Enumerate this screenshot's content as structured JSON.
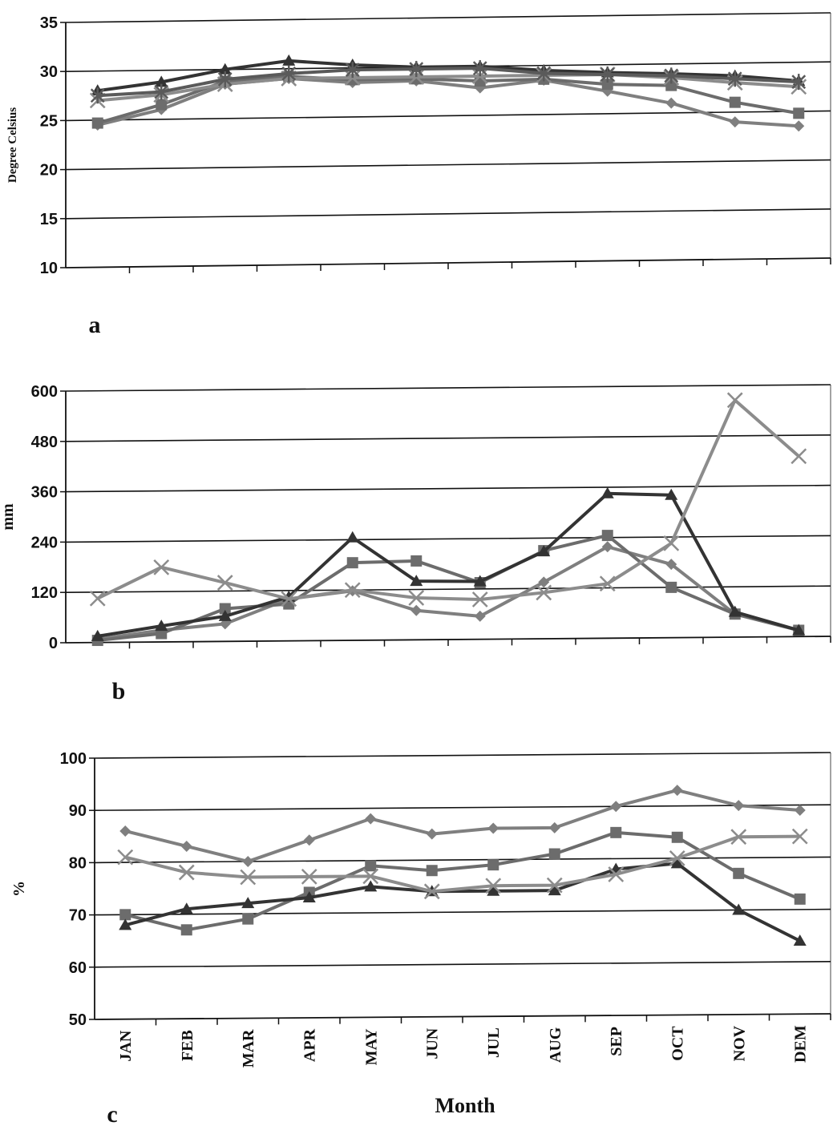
{
  "chart_data": [
    {
      "type": "line",
      "panel_label": "a",
      "ylabel": "Degree Celsius",
      "xlabel": "",
      "ylim": [
        10,
        35
      ],
      "yticks": [
        10,
        15,
        20,
        25,
        30,
        35
      ],
      "ytick_labels": [
        "10",
        "15",
        "20",
        "25",
        "30",
        "35"
      ],
      "categories": [
        "JAN",
        "FEB",
        "MAR",
        "APR",
        "MAY",
        "JUN",
        "JUL",
        "AUG",
        "SEP",
        "OCT",
        "NOV",
        "DEM"
      ],
      "show_month_labels": false,
      "grid": true,
      "series": [
        {
          "marker": "diamond",
          "color": "#7f7f7f",
          "values": [
            24.5,
            26.0,
            28.5,
            29.0,
            28.5,
            28.6,
            27.8,
            28.5,
            27.3,
            26.0,
            24.0,
            23.5
          ]
        },
        {
          "marker": "square",
          "color": "#6c6c6c",
          "values": [
            24.7,
            26.5,
            28.8,
            29.2,
            28.8,
            28.8,
            28.5,
            28.6,
            28.0,
            27.8,
            26.0,
            24.8
          ]
        },
        {
          "marker": "triangle",
          "color": "#333333",
          "values": [
            28.0,
            28.8,
            30.0,
            30.8,
            30.3,
            30.0,
            30.0,
            29.5,
            29.2,
            29.0,
            28.7,
            28.1
          ]
        },
        {
          "marker": "x",
          "color": "#8c8c8c",
          "values": [
            27.0,
            27.5,
            28.5,
            29.0,
            29.0,
            29.0,
            29.0,
            29.0,
            29.0,
            28.6,
            28.0,
            27.5
          ]
        },
        {
          "marker": "star",
          "color": "#5a5a5a",
          "values": [
            27.5,
            27.8,
            29.0,
            29.5,
            29.8,
            29.8,
            29.8,
            29.2,
            29.0,
            28.8,
            28.4,
            28.0
          ]
        }
      ]
    },
    {
      "type": "line",
      "panel_label": "b",
      "ylabel": "mm",
      "xlabel": "",
      "ylim": [
        0,
        600
      ],
      "yticks": [
        0,
        120,
        240,
        360,
        480,
        600
      ],
      "ytick_labels": [
        "0",
        "120",
        "240",
        "360",
        "480",
        "600"
      ],
      "categories": [
        "JAN",
        "FEB",
        "MAR",
        "APR",
        "MAY",
        "JUN",
        "JUL",
        "AUG",
        "SEP",
        "OCT",
        "NOV",
        "DEM"
      ],
      "show_month_labels": false,
      "grid": true,
      "series": [
        {
          "marker": "diamond",
          "color": "#7f7f7f",
          "values": [
            8,
            28,
            42,
            100,
            118,
            70,
            55,
            135,
            218,
            175,
            55,
            15
          ]
        },
        {
          "marker": "square",
          "color": "#6c6c6c",
          "values": [
            5,
            20,
            78,
            88,
            185,
            188,
            135,
            210,
            245,
            120,
            55,
            15
          ]
        },
        {
          "marker": "triangle",
          "color": "#333333",
          "values": [
            15,
            38,
            60,
            105,
            245,
            140,
            138,
            208,
            345,
            340,
            60,
            15
          ]
        },
        {
          "marker": "x",
          "color": "#8c8c8c",
          "values": [
            105,
            178,
            140,
            100,
            120,
            100,
            95,
            110,
            130,
            225,
            565,
            430
          ]
        }
      ]
    },
    {
      "type": "line",
      "panel_label": "c",
      "ylabel": "%",
      "xlabel": "Month",
      "ylim": [
        50,
        100
      ],
      "yticks": [
        50,
        60,
        70,
        80,
        90,
        100
      ],
      "ytick_labels": [
        "50",
        "60",
        "70",
        "80",
        "90",
        "100"
      ],
      "categories": [
        "JAN",
        "FEB",
        "MAR",
        "APR",
        "MAY",
        "JUN",
        "JUL",
        "AUG",
        "SEP",
        "OCT",
        "NOV",
        "DEM"
      ],
      "show_month_labels": true,
      "grid": true,
      "series": [
        {
          "marker": "diamond",
          "color": "#7f7f7f",
          "values": [
            86,
            83,
            80,
            84,
            88,
            85,
            86,
            86,
            90,
            93,
            90,
            89
          ]
        },
        {
          "marker": "square",
          "color": "#6c6c6c",
          "values": [
            70,
            67,
            69,
            74,
            79,
            78,
            79,
            81,
            85,
            84,
            77,
            72
          ]
        },
        {
          "marker": "triangle",
          "color": "#333333",
          "values": [
            68,
            71,
            72,
            73,
            75,
            74,
            74,
            74,
            78,
            79,
            70,
            64
          ]
        },
        {
          "marker": "x",
          "color": "#8c8c8c",
          "values": [
            81,
            78,
            77,
            77,
            77,
            74,
            75,
            75,
            77,
            80,
            84,
            84
          ]
        }
      ]
    }
  ]
}
